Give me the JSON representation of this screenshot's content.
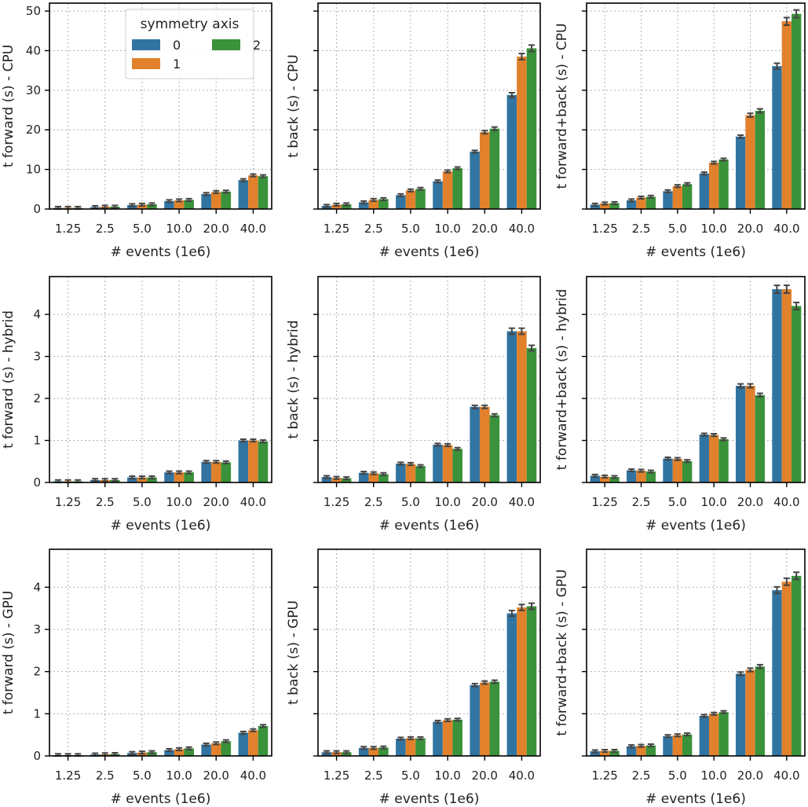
{
  "chart_data": {
    "type": "bar",
    "categories": [
      "1.25",
      "2.5",
      "5.0",
      "10.0",
      "20.0",
      "40.0"
    ],
    "xlabel": "# events (1e6)",
    "legend": {
      "title": "symmetry axis",
      "entries": [
        "0",
        "1",
        "2"
      ],
      "placement": "top-right of first panel"
    },
    "series_colors": [
      "#3274a1",
      "#e1812c",
      "#3a923a"
    ],
    "grid": true,
    "panels": [
      {
        "ylabel": "t forward (s) - CPU",
        "ylim": [
          0,
          52
        ],
        "yticks": [
          0,
          10,
          20,
          30,
          40,
          50
        ],
        "show_ytick_labels": true,
        "series": [
          {
            "name": "0",
            "values": [
              0.3,
              0.5,
              1.0,
              2.0,
              3.8,
              7.3
            ]
          },
          {
            "name": "1",
            "values": [
              0.3,
              0.6,
              1.1,
              2.2,
              4.3,
              8.5
            ]
          },
          {
            "name": "2",
            "values": [
              0.3,
              0.6,
              1.2,
              2.3,
              4.4,
              8.3
            ]
          }
        ]
      },
      {
        "ylabel": "t back (s) - CPU",
        "ylim": [
          0,
          52
        ],
        "yticks": [
          0,
          10,
          20,
          30,
          40,
          50
        ],
        "show_ytick_labels": false,
        "series": [
          {
            "name": "0",
            "values": [
              0.8,
              1.7,
              3.5,
              7.0,
              14.5,
              28.8
            ]
          },
          {
            "name": "1",
            "values": [
              1.1,
              2.3,
              4.7,
              9.5,
              19.4,
              38.5
            ]
          },
          {
            "name": "2",
            "values": [
              1.2,
              2.5,
              5.1,
              10.3,
              20.3,
              40.6
            ]
          }
        ]
      },
      {
        "ylabel": "t forward+back (s) - CPU",
        "ylim": [
          0,
          52
        ],
        "yticks": [
          0,
          10,
          20,
          30,
          40,
          50
        ],
        "show_ytick_labels": false,
        "series": [
          {
            "name": "0",
            "values": [
              1.1,
              2.2,
              4.5,
              9.0,
              18.3,
              36.1
            ]
          },
          {
            "name": "1",
            "values": [
              1.4,
              2.9,
              5.8,
              11.7,
              23.7,
              47.4
            ]
          },
          {
            "name": "2",
            "values": [
              1.5,
              3.1,
              6.3,
              12.5,
              24.8,
              49.3
            ]
          }
        ]
      },
      {
        "ylabel": "t forward (s) - hybrid",
        "ylim": [
          0,
          4.9
        ],
        "yticks": [
          0,
          1,
          2,
          3,
          4
        ],
        "show_ytick_labels": true,
        "series": [
          {
            "name": "0",
            "values": [
              0.03,
              0.06,
              0.12,
              0.24,
              0.49,
              1.0
            ]
          },
          {
            "name": "1",
            "values": [
              0.03,
              0.06,
              0.12,
              0.24,
              0.49,
              1.0
            ]
          },
          {
            "name": "2",
            "values": [
              0.03,
              0.06,
              0.12,
              0.24,
              0.48,
              0.98
            ]
          }
        ]
      },
      {
        "ylabel": "t back (s) - hybrid",
        "ylim": [
          0,
          4.9
        ],
        "yticks": [
          0,
          1,
          2,
          3,
          4
        ],
        "show_ytick_labels": false,
        "series": [
          {
            "name": "0",
            "values": [
              0.13,
              0.23,
              0.45,
              0.9,
              1.8,
              3.6
            ]
          },
          {
            "name": "1",
            "values": [
              0.11,
              0.22,
              0.44,
              0.89,
              1.8,
              3.6
            ]
          },
          {
            "name": "2",
            "values": [
              0.1,
              0.2,
              0.39,
              0.8,
              1.6,
              3.2
            ]
          }
        ]
      },
      {
        "ylabel": "t forward+back (s) - hybrid",
        "ylim": [
          0,
          4.9
        ],
        "yticks": [
          0,
          1,
          2,
          3,
          4
        ],
        "show_ytick_labels": false,
        "series": [
          {
            "name": "0",
            "values": [
              0.16,
              0.29,
              0.57,
              1.14,
              2.3,
              4.6
            ]
          },
          {
            "name": "1",
            "values": [
              0.14,
              0.28,
              0.56,
              1.13,
              2.3,
              4.6
            ]
          },
          {
            "name": "2",
            "values": [
              0.13,
              0.26,
              0.51,
              1.03,
              2.08,
              4.2
            ]
          }
        ]
      },
      {
        "ylabel": "t forward (s) - GPU",
        "ylim": [
          0,
          4.9
        ],
        "yticks": [
          0,
          1,
          2,
          3,
          4
        ],
        "show_ytick_labels": true,
        "series": [
          {
            "name": "0",
            "values": [
              0.02,
              0.035,
              0.07,
              0.14,
              0.27,
              0.55
            ]
          },
          {
            "name": "1",
            "values": [
              0.02,
              0.04,
              0.08,
              0.16,
              0.3,
              0.61
            ]
          },
          {
            "name": "2",
            "values": [
              0.02,
              0.045,
              0.09,
              0.18,
              0.35,
              0.71
            ]
          }
        ]
      },
      {
        "ylabel": "t back (s) - GPU",
        "ylim": [
          0,
          4.9
        ],
        "yticks": [
          0,
          1,
          2,
          3,
          4
        ],
        "show_ytick_labels": false,
        "series": [
          {
            "name": "0",
            "values": [
              0.09,
              0.19,
              0.41,
              0.81,
              1.68,
              3.38
            ]
          },
          {
            "name": "1",
            "values": [
              0.09,
              0.19,
              0.42,
              0.85,
              1.74,
              3.52
            ]
          },
          {
            "name": "2",
            "values": [
              0.09,
              0.2,
              0.42,
              0.86,
              1.76,
              3.55
            ]
          }
        ]
      },
      {
        "ylabel": "t forward+back (s) - GPU",
        "ylim": [
          0,
          4.9
        ],
        "yticks": [
          0,
          1,
          2,
          3,
          4
        ],
        "show_ytick_labels": false,
        "series": [
          {
            "name": "0",
            "values": [
              0.11,
              0.23,
              0.47,
              0.95,
              1.95,
              3.93
            ]
          },
          {
            "name": "1",
            "values": [
              0.12,
              0.24,
              0.49,
              1.0,
              2.04,
              4.13
            ]
          },
          {
            "name": "2",
            "values": [
              0.12,
              0.25,
              0.51,
              1.04,
              2.12,
              4.27
            ]
          }
        ]
      }
    ]
  }
}
